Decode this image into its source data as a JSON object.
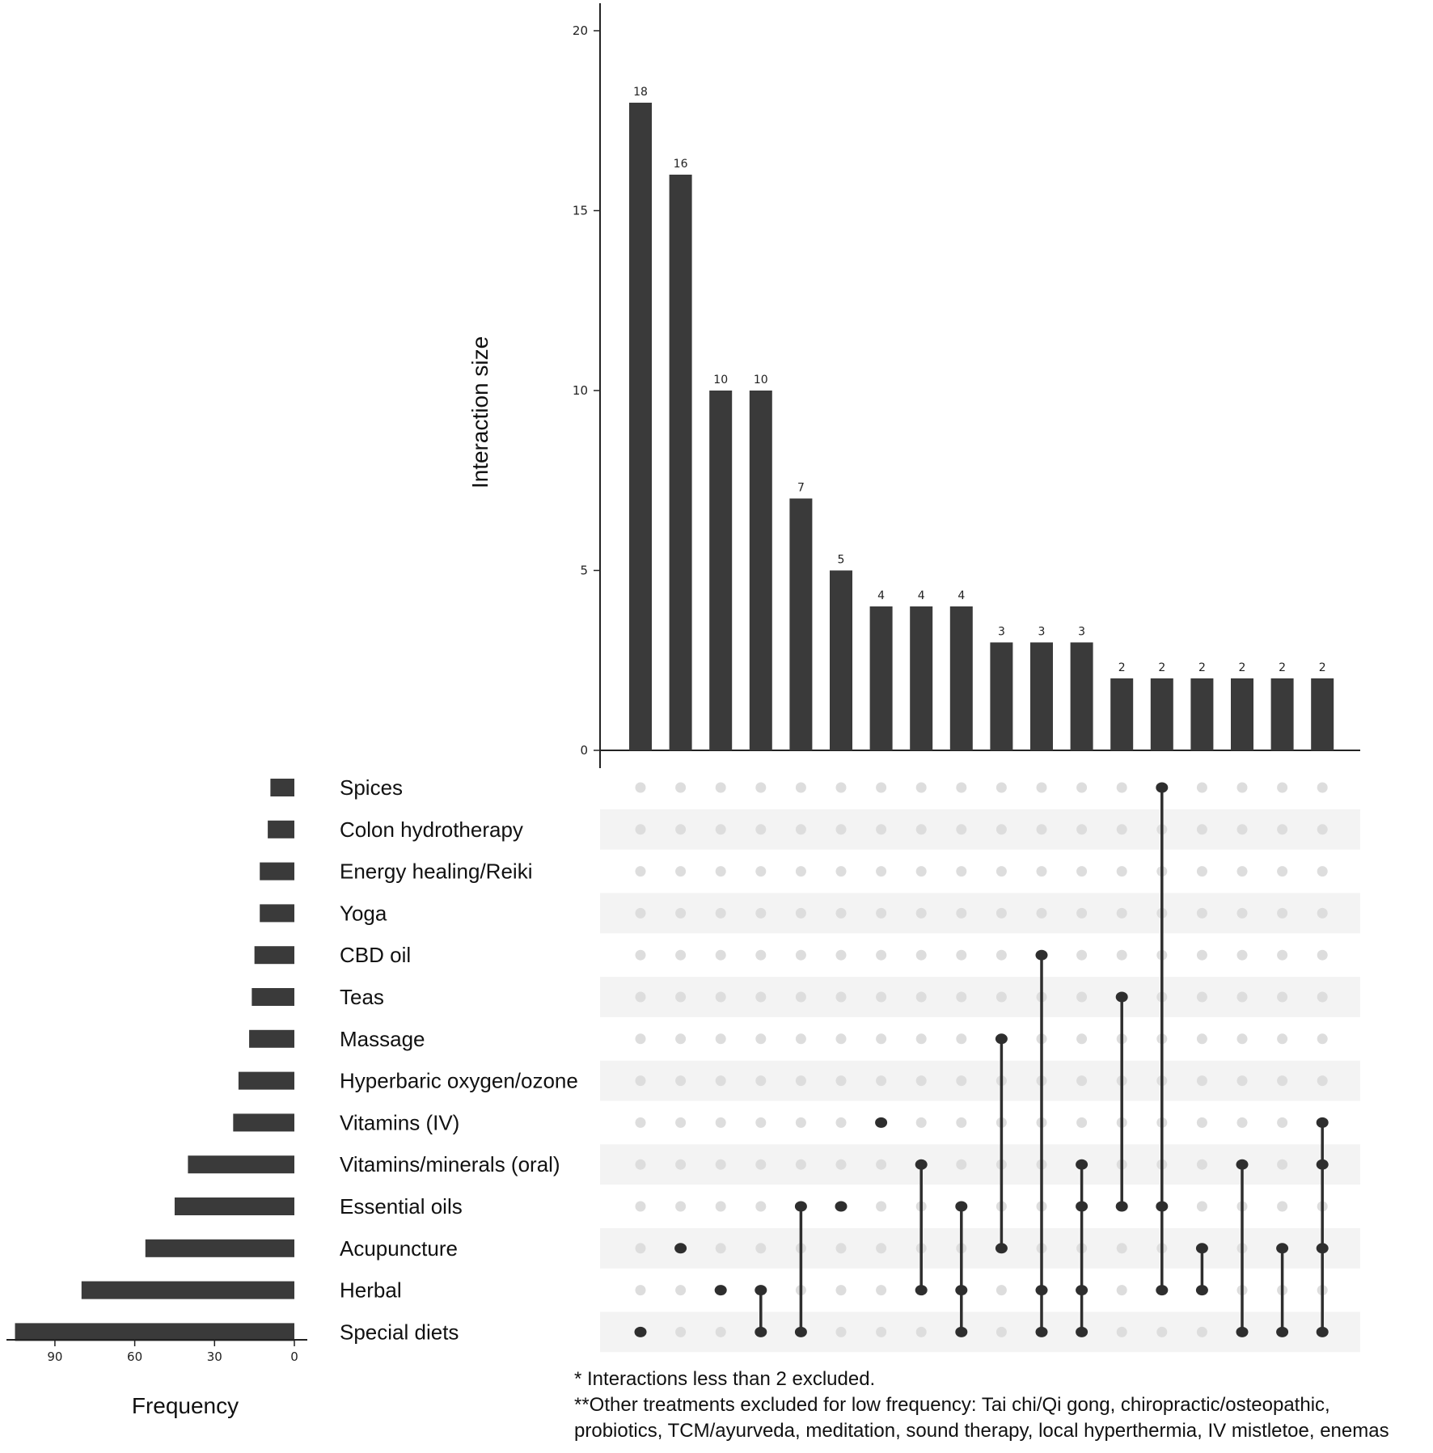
{
  "chart_data": {
    "type": "bar",
    "upset": true,
    "intersection_axis": {
      "label": "Interaction size",
      "ylim": [
        0,
        20
      ],
      "ticks": [
        "0",
        "5",
        "10",
        "15",
        "20"
      ]
    },
    "frequency_axis": {
      "label": "Frequency",
      "xlim": [
        0,
        105
      ],
      "ticks": [
        "90",
        "60",
        "30",
        "0"
      ]
    },
    "sets": [
      {
        "name": "Spices",
        "frequency": 9
      },
      {
        "name": "Colon hydrotherapy",
        "frequency": 10
      },
      {
        "name": "Energy healing/Reiki",
        "frequency": 13
      },
      {
        "name": "Yoga",
        "frequency": 13
      },
      {
        "name": "CBD oil",
        "frequency": 15
      },
      {
        "name": "Teas",
        "frequency": 16
      },
      {
        "name": "Massage",
        "frequency": 17
      },
      {
        "name": "Hyperbaric oxygen/ozone",
        "frequency": 21
      },
      {
        "name": "Vitamins (IV)",
        "frequency": 23
      },
      {
        "name": "Vitamins/minerals (oral)",
        "frequency": 40
      },
      {
        "name": "Essential oils",
        "frequency": 45
      },
      {
        "name": "Acupuncture",
        "frequency": 56
      },
      {
        "name": "Herbal",
        "frequency": 80
      },
      {
        "name": "Special diets",
        "frequency": 105
      }
    ],
    "intersections": [
      {
        "size": 18,
        "label": "18",
        "members": [
          "Special diets"
        ]
      },
      {
        "size": 16,
        "label": "16",
        "members": [
          "Acupuncture"
        ]
      },
      {
        "size": 10,
        "label": "10",
        "members": [
          "Herbal"
        ]
      },
      {
        "size": 10,
        "label": "10",
        "members": [
          "Herbal",
          "Special diets"
        ]
      },
      {
        "size": 7,
        "label": "7",
        "members": [
          "Essential oils",
          "Special diets"
        ]
      },
      {
        "size": 5,
        "label": "5",
        "members": [
          "Essential oils"
        ]
      },
      {
        "size": 4,
        "label": "4",
        "members": [
          "Vitamins (IV)"
        ]
      },
      {
        "size": 4,
        "label": "4",
        "members": [
          "Vitamins/minerals (oral)",
          "Herbal"
        ]
      },
      {
        "size": 4,
        "label": "4",
        "members": [
          "Essential oils",
          "Herbal",
          "Special diets"
        ]
      },
      {
        "size": 3,
        "label": "3",
        "members": [
          "Massage",
          "Acupuncture"
        ]
      },
      {
        "size": 3,
        "label": "3",
        "members": [
          "CBD oil",
          "Herbal",
          "Special diets"
        ]
      },
      {
        "size": 3,
        "label": "3",
        "members": [
          "Vitamins/minerals (oral)",
          "Essential oils",
          "Herbal",
          "Special diets"
        ]
      },
      {
        "size": 2,
        "label": "2",
        "members": [
          "Teas",
          "Essential oils"
        ]
      },
      {
        "size": 2,
        "label": "2",
        "members": [
          "Spices",
          "Essential oils",
          "Herbal"
        ]
      },
      {
        "size": 2,
        "label": "2",
        "members": [
          "Acupuncture",
          "Herbal"
        ]
      },
      {
        "size": 2,
        "label": "2",
        "members": [
          "Vitamins/minerals (oral)",
          "Special diets"
        ]
      },
      {
        "size": 2,
        "label": "2",
        "members": [
          "Acupuncture",
          "Special diets"
        ]
      },
      {
        "size": 2,
        "label": "2",
        "members": [
          "Vitamins (IV)",
          "Vitamins/minerals (oral)",
          "Acupuncture",
          "Special diets"
        ]
      }
    ],
    "grid": false,
    "colors": {
      "bar": "#3a3a3a",
      "dot_on": "#2e2e2e",
      "dot_off": "#dddddd",
      "stripe": "#f3f3f3",
      "axis": "#222222"
    }
  },
  "notes": {
    "line1": "* Interactions less than 2 excluded.",
    "line2": "**Other treatments excluded for low frequency: Tai chi/Qi gong, chiropractic/osteopathic,",
    "line3": "probiotics, TCM/ayurveda, meditation, sound therapy, local hyperthermia, IV mistletoe, enemas"
  }
}
